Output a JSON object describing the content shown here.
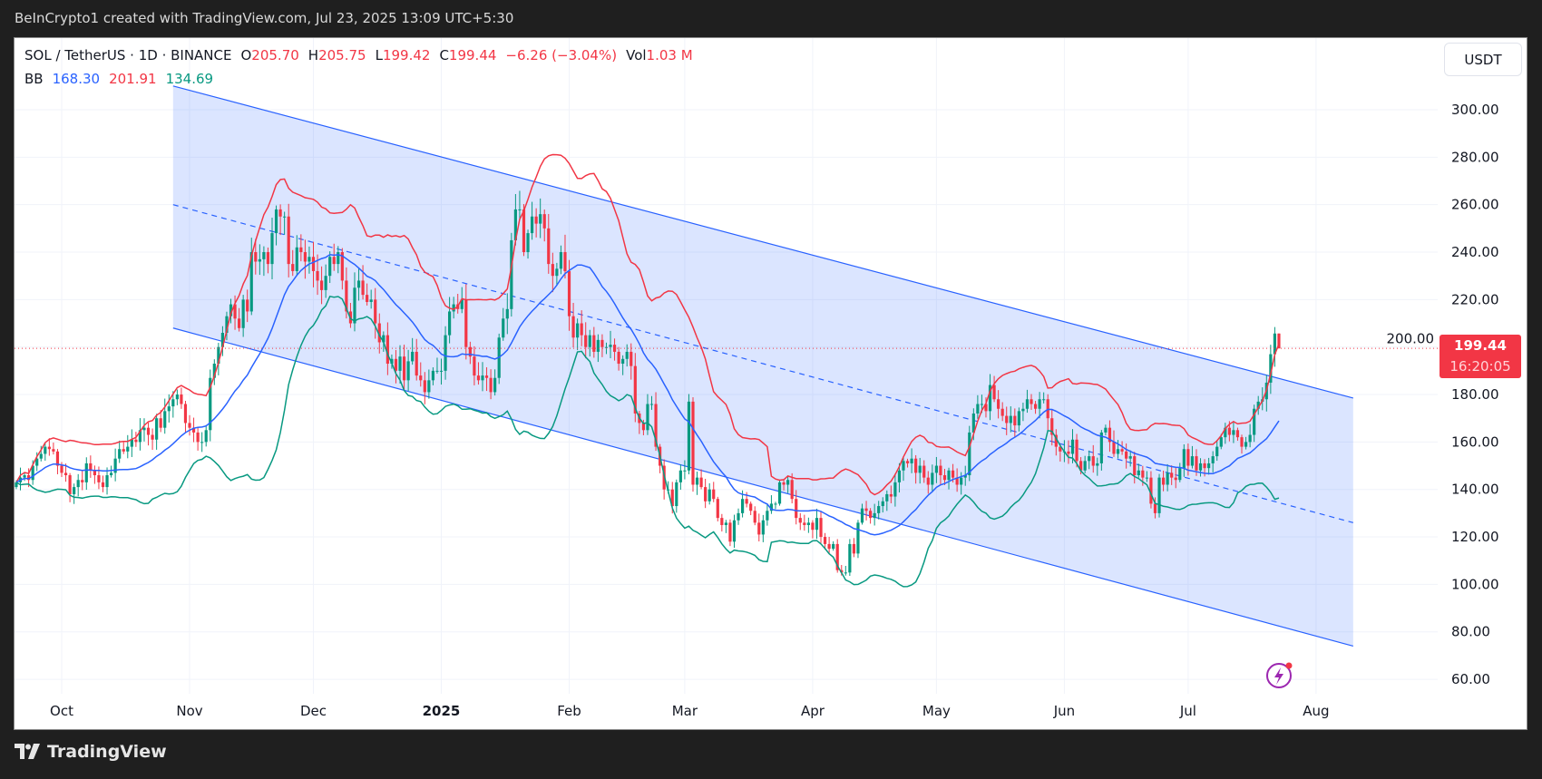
{
  "header": {
    "caption": "BeInCrypto1 created with TradingView.com, Jul 23, 2025 13:09 UTC+5:30"
  },
  "legend": {
    "symbol": "SOL / TetherUS · 1D · BINANCE",
    "o_label": "O",
    "o": "205.70",
    "h_label": "H",
    "h": "205.75",
    "l_label": "L",
    "l": "199.42",
    "c_label": "C",
    "c": "199.44",
    "change": "−6.26 (−3.04%)",
    "vol_label": "Vol",
    "vol": "1.03 M",
    "bb_label": "BB",
    "bb_basis": "168.30",
    "bb_upper": "201.91",
    "bb_lower": "134.69"
  },
  "price_axis": {
    "currency_button": "USDT",
    "last_price": "199.44",
    "countdown": "16:20:05"
  },
  "footer": {
    "brand": "TradingView"
  },
  "colors": {
    "up": "#089981",
    "down": "#f23645",
    "bb_basis": "#2962ff",
    "bb_upper": "#f23645",
    "bb_lower": "#089981",
    "channel": "#2962ff"
  },
  "chart_data": {
    "type": "candlestick",
    "interval": "1D",
    "first_date": "2024-09-20",
    "last_date": "2025-07-23",
    "closes": [
      143,
      145,
      146,
      144,
      150,
      153,
      155,
      158,
      157,
      156,
      150,
      147,
      146,
      138,
      141,
      144,
      143,
      151,
      148,
      146,
      143,
      141,
      146,
      147,
      153,
      157,
      156,
      158,
      161,
      160,
      165,
      166,
      163,
      161,
      170,
      166,
      173,
      175,
      178,
      180,
      176,
      168,
      166,
      164,
      160,
      160,
      165,
      187,
      193,
      200,
      206,
      213,
      218,
      212,
      208,
      220,
      215,
      240,
      236,
      237,
      240,
      235,
      248,
      258,
      255,
      255,
      235,
      232,
      242,
      240,
      236,
      238,
      232,
      228,
      224,
      230,
      238,
      235,
      240,
      228,
      215,
      210,
      225,
      228,
      222,
      219,
      220,
      210,
      202,
      205,
      193,
      195,
      190,
      196,
      186,
      194,
      198,
      188,
      186,
      181,
      186,
      190,
      190,
      190,
      205,
      215,
      218,
      216,
      220,
      200,
      196,
      188,
      186,
      188,
      187,
      181,
      187,
      204,
      212,
      216,
      245,
      258,
      258,
      240,
      248,
      255,
      252,
      256,
      250,
      235,
      230,
      233,
      240,
      232,
      213,
      204,
      210,
      205,
      200,
      205,
      198,
      203,
      200,
      200,
      201,
      198,
      193,
      195,
      198,
      192,
      172,
      168,
      165,
      176,
      176,
      158,
      150,
      140,
      140,
      133,
      143,
      148,
      148,
      177,
      142,
      145,
      141,
      135,
      140,
      136,
      128,
      125,
      126,
      118,
      127,
      130,
      136,
      134,
      131,
      126,
      121,
      127,
      131,
      134,
      134,
      143,
      142,
      144,
      136,
      128,
      126,
      125,
      126,
      123,
      128,
      120,
      117,
      115,
      117,
      106,
      105,
      105,
      117,
      113,
      126,
      132,
      131,
      128,
      130,
      133,
      135,
      138,
      137,
      143,
      148,
      152,
      151,
      153,
      147,
      150,
      145,
      142,
      147,
      150,
      146,
      144,
      148,
      145,
      142,
      145,
      146,
      164,
      172,
      176,
      176,
      173,
      184,
      178,
      174,
      171,
      168,
      171,
      167,
      173,
      174,
      178,
      176,
      174,
      178,
      178,
      170,
      163,
      158,
      156,
      156,
      155,
      161,
      152,
      148,
      152,
      154,
      150,
      151,
      164,
      166,
      160,
      155,
      157,
      156,
      153,
      154,
      146,
      148,
      145,
      145,
      134,
      130,
      145,
      142,
      147,
      145,
      144,
      149,
      157,
      150,
      154,
      148,
      151,
      149,
      151,
      154,
      158,
      162,
      166,
      163,
      165,
      162,
      158,
      160,
      163,
      174,
      177,
      178,
      185,
      197,
      205.7,
      199.44
    ],
    "last_candle": {
      "open": 205.7,
      "high": 205.75,
      "low": 199.42,
      "close": 199.44
    },
    "indicators": {
      "bollinger_bands": {
        "length": 20,
        "stddev": 2
      }
    },
    "channel": {
      "upper": [
        [
          "2024-10-28",
          310
        ],
        [
          "2025-08-10",
          178.5
        ]
      ],
      "middle": [
        [
          "2024-10-28",
          260
        ],
        [
          "2025-08-10",
          126
        ]
      ],
      "lower": [
        [
          "2024-10-28",
          208
        ],
        [
          "2025-08-10",
          74
        ]
      ]
    },
    "y_ticks": [
      "300.00",
      "280.00",
      "260.00",
      "240.00",
      "220.00",
      "200.00",
      "180.00",
      "160.00",
      "140.00",
      "120.00",
      "100.00",
      "80.00",
      "60.00"
    ],
    "x_ticks": [
      {
        "label": "Oct",
        "date": "2024-10-01"
      },
      {
        "label": "Nov",
        "date": "2024-11-01"
      },
      {
        "label": "Dec",
        "date": "2024-12-01"
      },
      {
        "label": "2025",
        "date": "2025-01-01",
        "bold": true
      },
      {
        "label": "Feb",
        "date": "2025-02-01"
      },
      {
        "label": "Mar",
        "date": "2025-03-01"
      },
      {
        "label": "Apr",
        "date": "2025-04-01"
      },
      {
        "label": "May",
        "date": "2025-05-01"
      },
      {
        "label": "Jun",
        "date": "2025-06-01"
      },
      {
        "label": "Jul",
        "date": "2025-07-01"
      },
      {
        "label": "Aug",
        "date": "2025-08-01"
      }
    ],
    "ylim": [
      55,
      320
    ],
    "grid": true,
    "legend": "top-left"
  }
}
